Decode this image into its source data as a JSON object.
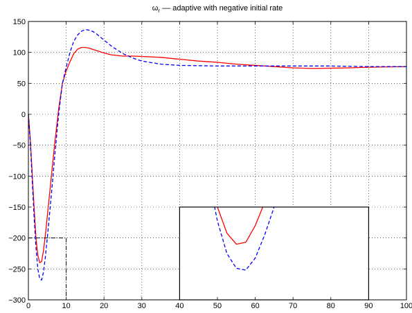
{
  "chart_data": {
    "type": "line",
    "title": {
      "symbol": "ω",
      "subscript": "r",
      "text": " –– adaptive with negative initial rate"
    },
    "xlabel": "",
    "ylabel": "",
    "xlim": [
      0,
      100
    ],
    "ylim": [
      -300,
      150
    ],
    "xticks": [
      0,
      10,
      20,
      30,
      40,
      50,
      60,
      70,
      80,
      90,
      100
    ],
    "yticks": [
      150,
      100,
      50,
      0,
      -50,
      -100,
      -150,
      -200,
      -250,
      -300
    ],
    "grid": true,
    "series": [
      {
        "style": "solid",
        "color": "#ff0000",
        "x": [
          0,
          0.5,
          1,
          1.5,
          2,
          2.5,
          3,
          3.5,
          4,
          4.5,
          5,
          6,
          7,
          8,
          9,
          10,
          11,
          12,
          13,
          14,
          15,
          16,
          17,
          18,
          20,
          22,
          25,
          28,
          30,
          35,
          40,
          45,
          50,
          55,
          60,
          65,
          70,
          75,
          80,
          85,
          90,
          95,
          100
        ],
        "y": [
          0,
          -40,
          -95,
          -150,
          -200,
          -228,
          -240,
          -238,
          -220,
          -195,
          -165,
          -105,
          -45,
          8,
          50,
          70,
          85,
          98,
          105,
          108,
          108,
          107,
          105,
          103,
          99,
          96,
          94,
          94,
          93.5,
          92,
          89,
          86,
          84,
          81,
          79,
          77,
          75,
          74,
          74.5,
          75,
          76,
          76.5,
          77
        ]
      },
      {
        "style": "dashed",
        "color": "#0000ff",
        "x": [
          0,
          0.5,
          1,
          1.5,
          2,
          2.5,
          3,
          3.5,
          4,
          4.5,
          5,
          6,
          7,
          8,
          9,
          10,
          11,
          12,
          13,
          14,
          15,
          16,
          17,
          18,
          20,
          22,
          25,
          28,
          30,
          35,
          40,
          45,
          50,
          55,
          60,
          65,
          70,
          75,
          80,
          85,
          90,
          95,
          100
        ],
        "y": [
          0,
          -45,
          -105,
          -165,
          -215,
          -250,
          -266,
          -268,
          -255,
          -230,
          -200,
          -135,
          -65,
          0,
          50,
          76,
          100,
          118,
          128,
          134,
          137,
          136,
          134,
          130,
          120,
          110,
          98,
          90,
          86,
          81,
          79,
          78.5,
          78,
          78,
          78,
          78,
          78,
          78,
          78,
          77.5,
          77,
          77,
          77
        ]
      }
    ],
    "inset_box": {
      "x": [
        0,
        10
      ],
      "y": [
        -300,
        -200
      ]
    },
    "inset": {
      "x": [
        40,
        90
      ],
      "y": [
        -300,
        -150
      ],
      "source_xlim": [
        0,
        10
      ],
      "source_ylim": [
        -300,
        -200
      ]
    }
  },
  "colors": {
    "red_series": "#ff0000",
    "blue_series": "#0000ff",
    "grid": "#000000",
    "axes": "#000000"
  }
}
